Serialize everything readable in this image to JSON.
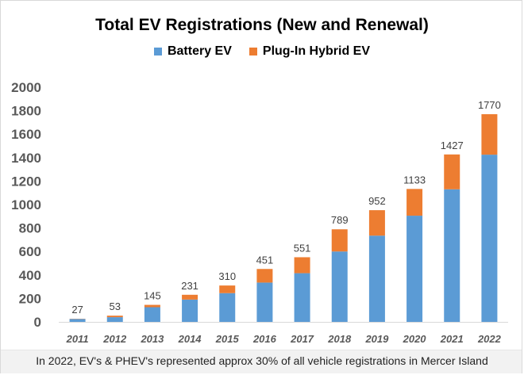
{
  "chart_data": {
    "type": "bar",
    "stacked": true,
    "title": "Total EV Registrations (New and Renewal)",
    "categories": [
      "2011",
      "2012",
      "2013",
      "2014",
      "2015",
      "2016",
      "2017",
      "2018",
      "2019",
      "2020",
      "2021",
      "2022"
    ],
    "series": [
      {
        "name": "Battery EV",
        "color": "#5b9bd5",
        "values": [
          25,
          40,
          125,
          190,
          245,
          335,
          415,
          600,
          735,
          905,
          1130,
          1425
        ]
      },
      {
        "name": "Plug-In Hybrid EV",
        "color": "#ed7d31",
        "values": [
          2,
          13,
          20,
          41,
          65,
          116,
          136,
          189,
          217,
          228,
          297,
          345
        ]
      }
    ],
    "totals": [
      27,
      53,
      145,
      231,
      310,
      451,
      551,
      789,
      952,
      1133,
      1427,
      1770
    ],
    "ylim": [
      0,
      2000
    ],
    "yticks": [
      0,
      200,
      400,
      600,
      800,
      1000,
      1200,
      1400,
      1600,
      1800,
      2000
    ],
    "xlabel": "",
    "ylabel": "",
    "grid": false,
    "legend_position": "top"
  },
  "caption": "In 2022, EV's & PHEV's represented approx 30% of all vehicle registrations in Mercer Island"
}
